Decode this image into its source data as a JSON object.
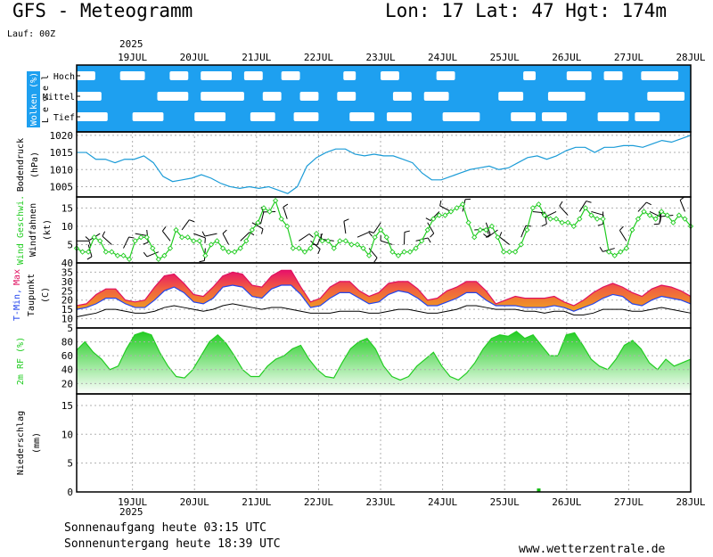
{
  "header": {
    "title": "GFS - Meteogramm",
    "location": "Lon: 17 Lat: 47 Hgt: 174m",
    "run": "Lauf: 00Z",
    "year": "2025"
  },
  "footer": {
    "sunrise": "Sonnenaufgang heute 03:15 UTC",
    "sunset": "Sonnenuntergang heute 18:39 UTC",
    "site": "www.wetterzentrale.de"
  },
  "colors": {
    "cloud_blue": "#1ea0f0",
    "pressure_line": "#1a9bd7",
    "wind_green": "#22cc22",
    "temp_max": "#e01060",
    "temp_min": "#2244ee",
    "temp_gradient_low": "#f0a020",
    "humidity_green": "#22cc22",
    "precip_green": "#11bb11",
    "grid": "#b0b0b0"
  },
  "chart_data": [
    {
      "panel": "clouds",
      "type": "heatmap",
      "ylabel": "Wolken (%)",
      "level_label": "Level",
      "levels": [
        "Hoch",
        "Mittel",
        "Tief"
      ],
      "categories": [
        "19JUL",
        "20JUL",
        "21JUL",
        "22JUL",
        "23JUL",
        "24JUL",
        "25JUL",
        "26JUL",
        "27JUL",
        "28JUL"
      ]
    },
    {
      "panel": "pressure",
      "type": "line",
      "ylabel": "Bodendruck",
      "unit": "(hPa)",
      "ylim": [
        1002,
        1021
      ],
      "yticks": [
        1005,
        1010,
        1015,
        1020
      ],
      "series": [
        {
          "values": [
            1015,
            1015,
            1013,
            1013,
            1012,
            1013,
            1013,
            1014,
            1012,
            1008,
            1006.5,
            1007,
            1007.5,
            1008.5,
            1007.5,
            1006,
            1005,
            1004.5,
            1005,
            1004.5,
            1005,
            1004,
            1003,
            1005,
            1011,
            1013.5,
            1015,
            1016,
            1016,
            1014.5,
            1014,
            1014.5,
            1014,
            1014,
            1013,
            1012,
            1009,
            1007,
            1007,
            1008,
            1009,
            1010,
            1010.5,
            1011,
            1010,
            1010.5,
            1012,
            1013.5,
            1014,
            1013,
            1014,
            1015.5,
            1016.5,
            1016.5,
            1015,
            1016.5,
            1016.5,
            1017,
            1017,
            1016.5,
            1017.5,
            1018.5,
            1018,
            1019,
            1020
          ]
        }
      ]
    },
    {
      "panel": "wind",
      "type": "line",
      "ylabel": "Wind Geschwi.",
      "ylabel2": "Windfahnen",
      "unit": "(kt)",
      "ylim": [
        0,
        18
      ],
      "yticks": [
        5,
        10,
        15
      ],
      "series": [
        {
          "values": [
            4,
            3,
            3,
            7,
            6,
            3,
            3,
            2,
            2,
            1,
            6,
            7,
            7,
            4,
            1,
            2,
            4,
            9,
            7,
            7,
            6,
            6,
            2,
            5,
            6,
            4,
            3,
            3,
            4,
            6,
            9,
            11,
            15,
            14,
            17,
            12,
            10,
            4,
            4,
            3,
            4,
            8,
            6,
            6,
            4,
            6,
            6,
            5,
            5,
            4,
            2,
            7,
            9,
            7,
            3,
            2,
            3,
            3,
            4,
            6,
            9,
            12,
            13,
            13,
            14,
            15,
            16,
            11,
            7,
            9,
            9,
            10,
            7,
            3,
            3,
            3,
            5,
            9,
            15,
            16,
            13,
            12,
            12,
            11,
            11,
            10,
            12,
            15,
            13,
            12,
            12,
            3,
            2,
            3,
            4,
            9,
            12,
            14,
            13,
            12,
            14,
            13,
            11,
            13,
            12,
            10
          ]
        }
      ]
    },
    {
      "panel": "temperature",
      "type": "area",
      "ylabel_min": "T-Min,",
      "ylabel_max": "Max",
      "ylabel_dew": "Taupunkt",
      "unit": "(C)",
      "ylim": [
        5,
        40
      ],
      "yticks": [
        5,
        10,
        15,
        20,
        25,
        30,
        35,
        40
      ],
      "series": [
        {
          "name": "Max",
          "values": [
            17,
            18,
            23,
            26,
            26,
            20,
            19,
            20,
            27,
            33,
            34,
            29,
            23,
            22,
            27,
            33,
            35,
            34,
            28,
            27,
            33,
            36,
            36,
            27,
            19,
            21,
            27,
            30,
            30,
            25,
            22,
            24,
            29,
            30,
            30,
            26,
            20,
            21,
            25,
            27,
            30,
            30,
            25,
            18,
            20,
            22,
            21,
            21,
            21,
            22,
            19,
            17,
            20,
            24,
            27,
            29,
            27,
            24,
            22,
            26,
            28,
            27,
            25,
            22
          ]
        },
        {
          "name": "Min",
          "values": [
            15,
            16,
            18,
            21,
            21,
            18,
            16,
            16,
            20,
            25,
            27,
            24,
            19,
            18,
            21,
            27,
            28,
            27,
            22,
            21,
            26,
            28,
            28,
            23,
            16,
            17,
            21,
            24,
            24,
            21,
            18,
            19,
            23,
            25,
            24,
            21,
            17,
            17,
            19,
            21,
            24,
            24,
            20,
            17,
            17,
            17,
            16,
            16,
            16,
            17,
            16,
            14,
            16,
            18,
            21,
            23,
            22,
            18,
            17,
            20,
            22,
            21,
            20,
            18
          ]
        },
        {
          "name": "Taupunkt",
          "values": [
            11,
            12,
            13,
            15,
            15,
            14,
            13,
            13,
            14,
            16,
            17,
            16,
            15,
            14,
            15,
            17,
            18,
            17,
            16,
            15,
            16,
            16,
            15,
            14,
            13,
            13,
            13,
            14,
            14,
            14,
            13,
            13,
            14,
            15,
            15,
            14,
            13,
            13,
            14,
            15,
            17,
            17,
            16,
            15,
            15,
            15,
            14,
            14,
            13,
            14,
            14,
            12,
            12,
            13,
            15,
            15,
            15,
            14,
            14,
            15,
            16,
            15,
            14,
            13
          ]
        }
      ]
    },
    {
      "panel": "humidity",
      "type": "area",
      "ylabel": "2m RF (%)",
      "ylim": [
        5,
        100
      ],
      "yticks": [
        20,
        40,
        60,
        80
      ],
      "series": [
        {
          "values": [
            68,
            80,
            65,
            55,
            40,
            45,
            70,
            90,
            94,
            90,
            65,
            45,
            30,
            28,
            40,
            60,
            80,
            90,
            78,
            60,
            40,
            30,
            30,
            45,
            55,
            60,
            70,
            75,
            55,
            40,
            30,
            28,
            50,
            70,
            80,
            85,
            70,
            45,
            30,
            25,
            30,
            45,
            55,
            65,
            45,
            30,
            25,
            35,
            50,
            70,
            85,
            90,
            88,
            95,
            85,
            90,
            75,
            60,
            60,
            90,
            93,
            75,
            55,
            45,
            40,
            55,
            75,
            82,
            70,
            50,
            40,
            55,
            45,
            50,
            55
          ]
        }
      ]
    },
    {
      "panel": "precip",
      "type": "bar",
      "ylabel": "Niederschlag",
      "unit": "(mm)",
      "ylim": [
        0,
        17
      ],
      "yticks": [
        0,
        5,
        10,
        15
      ],
      "series": [
        {
          "values": [
            {
              "day": 25.55,
              "mm": 0.6
            }
          ]
        }
      ]
    }
  ]
}
